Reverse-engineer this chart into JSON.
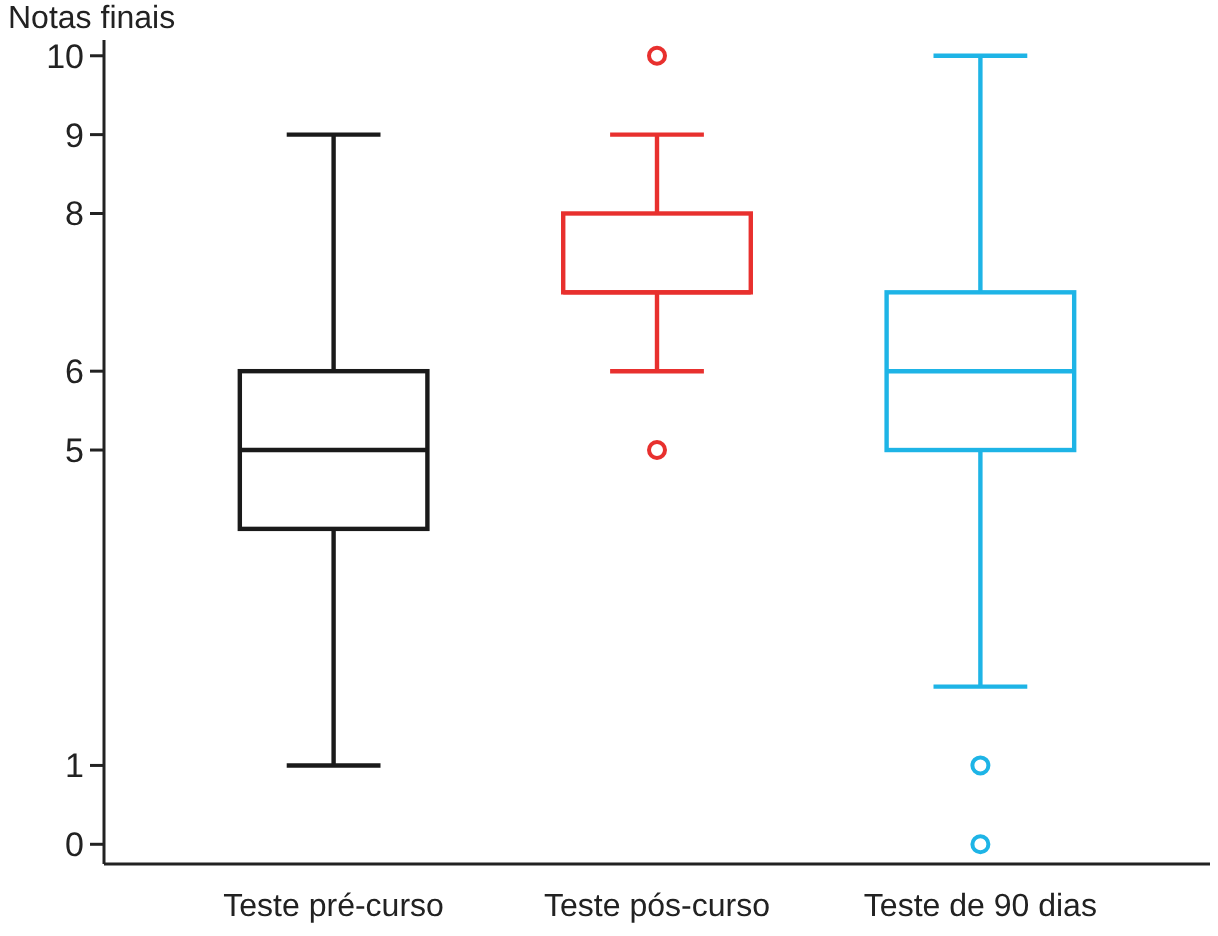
{
  "chart_data": {
    "type": "box",
    "ylabel": "Notas finais",
    "categories": [
      "Teste pré-curso",
      "Teste pós-curso",
      "Teste de 90 dias"
    ],
    "boxes": [
      {
        "low": 1,
        "q1": 4,
        "median": 5,
        "q3": 6,
        "high": 9
      },
      {
        "low": 6,
        "q1": 7,
        "median": 7,
        "q3": 8,
        "high": 9,
        "outliers": [
          10,
          5
        ]
      },
      {
        "low": 2,
        "q1": 5,
        "median": 6,
        "q3": 7,
        "high": 10,
        "outliers": [
          1,
          0
        ]
      }
    ],
    "colors": [
      "#1a1a1a",
      "#e8302e",
      "#1eb4e6"
    ],
    "ylim": [
      -0.25,
      10.2
    ],
    "yticks": [
      0,
      1,
      5,
      6,
      8,
      9,
      10
    ],
    "grid": false
  }
}
